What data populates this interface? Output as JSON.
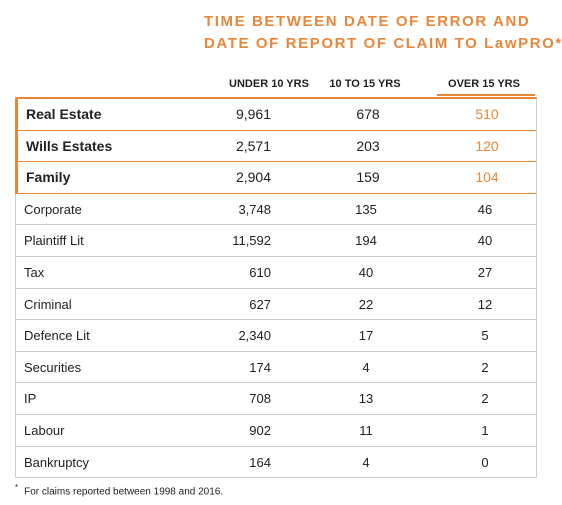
{
  "title": [
    "TIME BETWEEN DATE OF ERROR AND",
    "DATE OF REPORT OF CLAIM TO LawPRO*"
  ],
  "table": {
    "headers": [
      "UNDER 10 YRS",
      "10 TO 15 YRS",
      "OVER 15 YRS"
    ],
    "rows": [
      [
        "Real Estate",
        "9,961",
        "678",
        "510"
      ],
      [
        "Wills Estates",
        "2,571",
        "203",
        "120"
      ],
      [
        "Family",
        "2,904",
        "159",
        "104"
      ],
      [
        "Corporate",
        "3,748",
        "135",
        "46"
      ],
      [
        "Plaintiff Lit",
        "11,592",
        "194",
        "40"
      ],
      [
        "Tax",
        "610",
        "40",
        "27"
      ],
      [
        "Criminal",
        "627",
        "22",
        "12"
      ],
      [
        "Defence Lit",
        "2,340",
        "17",
        "5"
      ],
      [
        "Securities",
        "174",
        "4",
        "2"
      ],
      [
        "IP",
        "708",
        "13",
        "2"
      ],
      [
        "Labour",
        "902",
        "11",
        "1"
      ],
      [
        "Bankruptcy",
        "164",
        "4",
        "0"
      ]
    ]
  },
  "footnote": {
    "marker": "*",
    "text": "For claims reported between 1998 and 2016."
  }
}
